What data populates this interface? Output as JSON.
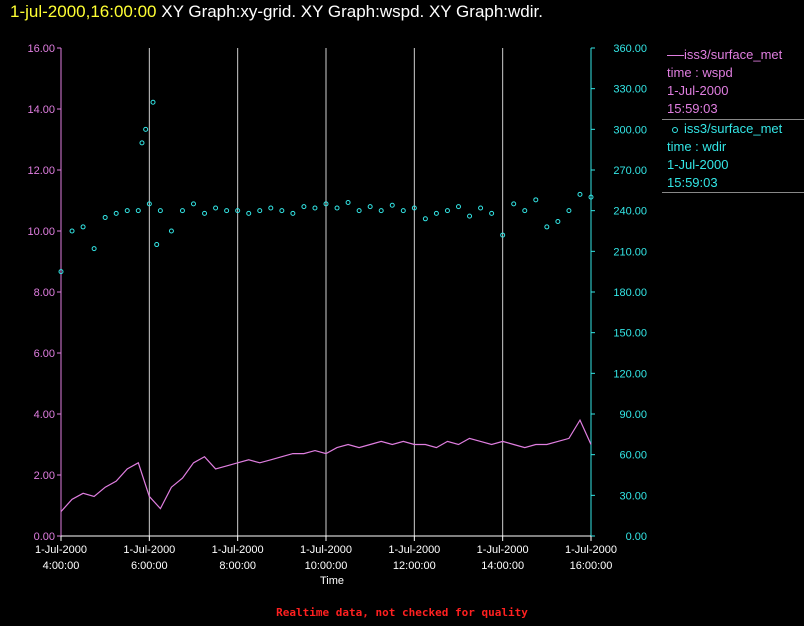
{
  "header": {
    "time": "1-jul-2000,16:00:00",
    "graphs": "XY Graph:xy-grid.  XY Graph:wspd.  XY Graph:wdir."
  },
  "legend": [
    {
      "marker": "line",
      "color": "#e07ee0",
      "source": "iss3/surface_met",
      "series": "time : wspd",
      "date": "1-Jul-2000",
      "time": "15:59:03"
    },
    {
      "marker": "circle",
      "color": "#33e6e6",
      "source": "iss3/surface_met",
      "series": "time : wdir",
      "date": "1-Jul-2000",
      "time": "15:59:03"
    }
  ],
  "footer_note": "Realtime data, not checked for quality",
  "chart_data": {
    "type": "line",
    "xlabel": "Time",
    "x_range": [
      "1-Jul-2000 4:00:00",
      "1-Jul-2000 16:00:00"
    ],
    "x_ticks": [
      {
        "date": "1-Jul-2000",
        "time": "4:00:00"
      },
      {
        "date": "1-Jul-2000",
        "time": "6:00:00"
      },
      {
        "date": "1-Jul-2000",
        "time": "8:00:00"
      },
      {
        "date": "1-Jul-2000",
        "time": "10:00:00"
      },
      {
        "date": "1-Jul-2000",
        "time": "12:00:00"
      },
      {
        "date": "1-Jul-2000",
        "time": "14:00:00"
      },
      {
        "date": "1-Jul-2000",
        "time": "16:00:00"
      }
    ],
    "y_left": {
      "ylim": [
        0,
        16
      ],
      "ticks": [
        "0.00",
        "2.00",
        "4.00",
        "6.00",
        "8.00",
        "10.00",
        "12.00",
        "14.00",
        "16.00"
      ],
      "color": "#e07ee0"
    },
    "y_right": {
      "ylim": [
        0,
        360
      ],
      "ticks": [
        "0.00",
        "30.00",
        "60.00",
        "90.00",
        "120.00",
        "150.00",
        "180.00",
        "210.00",
        "240.00",
        "270.00",
        "300.00",
        "330.00",
        "360.00"
      ],
      "color": "#33e6e6"
    },
    "grid": "vertical lines at x ticks",
    "series": [
      {
        "name": "wspd",
        "axis": "left",
        "style": "line",
        "color": "#e07ee0",
        "x": [
          "4:00",
          "4:15",
          "4:30",
          "4:45",
          "5:00",
          "5:15",
          "5:30",
          "5:45",
          "6:00",
          "6:15",
          "6:30",
          "6:45",
          "7:00",
          "7:15",
          "7:30",
          "7:45",
          "8:00",
          "8:15",
          "8:30",
          "8:45",
          "9:00",
          "9:15",
          "9:30",
          "9:45",
          "10:00",
          "10:15",
          "10:30",
          "10:45",
          "11:00",
          "11:15",
          "11:30",
          "11:45",
          "12:00",
          "12:15",
          "12:30",
          "12:45",
          "13:00",
          "13:15",
          "13:30",
          "13:45",
          "14:00",
          "14:15",
          "14:30",
          "14:45",
          "15:00",
          "15:15",
          "15:30",
          "15:45",
          "16:00"
        ],
        "y": [
          0.8,
          1.2,
          1.4,
          1.3,
          1.6,
          1.8,
          2.2,
          2.4,
          1.3,
          0.9,
          1.6,
          1.9,
          2.4,
          2.6,
          2.2,
          2.3,
          2.4,
          2.5,
          2.4,
          2.5,
          2.6,
          2.7,
          2.7,
          2.8,
          2.7,
          2.9,
          3.0,
          2.9,
          3.0,
          3.1,
          3.0,
          3.1,
          3.0,
          3.0,
          2.9,
          3.1,
          3.0,
          3.2,
          3.1,
          3.0,
          3.1,
          3.0,
          2.9,
          3.0,
          3.0,
          3.1,
          3.2,
          3.8,
          3.0
        ]
      },
      {
        "name": "wdir",
        "axis": "right",
        "style": "markers",
        "color": "#33e6e6",
        "x": [
          "4:00",
          "4:15",
          "4:30",
          "4:45",
          "5:00",
          "5:15",
          "5:30",
          "5:45",
          "5:50",
          "5:55",
          "6:00",
          "6:05",
          "6:10",
          "6:15",
          "6:30",
          "6:45",
          "7:00",
          "7:15",
          "7:30",
          "7:45",
          "8:00",
          "8:15",
          "8:30",
          "8:45",
          "9:00",
          "9:15",
          "9:30",
          "9:45",
          "10:00",
          "10:15",
          "10:30",
          "10:45",
          "11:00",
          "11:15",
          "11:30",
          "11:45",
          "12:00",
          "12:15",
          "12:30",
          "12:45",
          "13:00",
          "13:15",
          "13:30",
          "13:45",
          "14:00",
          "14:15",
          "14:30",
          "14:45",
          "15:00",
          "15:15",
          "15:30",
          "15:45",
          "16:00"
        ],
        "y": [
          195,
          225,
          228,
          212,
          235,
          238,
          240,
          240,
          290,
          300,
          245,
          320,
          215,
          240,
          225,
          240,
          245,
          238,
          242,
          240,
          240,
          238,
          240,
          242,
          240,
          238,
          243,
          242,
          245,
          242,
          246,
          240,
          243,
          240,
          244,
          240,
          242,
          234,
          238,
          240,
          243,
          236,
          242,
          238,
          222,
          245,
          240,
          248,
          228,
          232,
          240,
          252,
          250
        ]
      }
    ]
  }
}
